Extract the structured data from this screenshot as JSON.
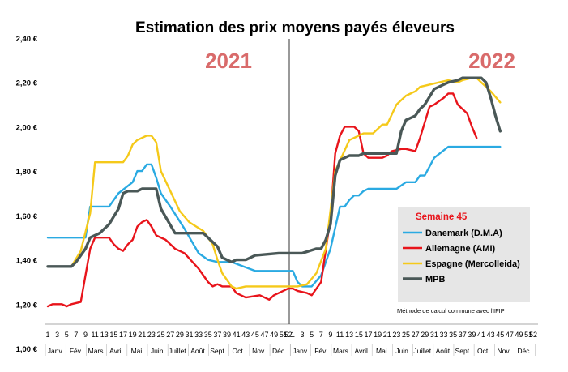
{
  "chart_data": {
    "type": "line",
    "title": "Estimation des prix moyens payés éleveurs",
    "year_labels": [
      "2021",
      "2022"
    ],
    "ylim": [
      1.0,
      2.4
    ],
    "yticks": [
      "1,00 €",
      "1,20 €",
      "1,40 €",
      "1,60 €",
      "1,80 €",
      "2,00 €",
      "2,20 €",
      "2,40 €"
    ],
    "week_ticks_2021": [
      "1",
      "3",
      "5",
      "7",
      "9",
      "11",
      "13",
      "15",
      "17",
      "19",
      "21",
      "23",
      "25",
      "27",
      "29",
      "31",
      "33",
      "35",
      "37",
      "39",
      "41",
      "43",
      "45",
      "47",
      "49",
      "51",
      "52"
    ],
    "week_ticks_2022": [
      "1",
      "3",
      "5",
      "7",
      "9",
      "11",
      "13",
      "15",
      "17",
      "19",
      "21",
      "23",
      "25",
      "27",
      "29",
      "31",
      "33",
      "35",
      "37",
      "39",
      "41",
      "43",
      "45",
      "47",
      "49",
      "51",
      "52"
    ],
    "months_2021": [
      "Janv",
      "Fév",
      "Mars",
      "Avril",
      "Mai",
      "Juin",
      "Juillet",
      "Août",
      "Sept.",
      "Oct.",
      "Nov.",
      "Déc."
    ],
    "months_2022": [
      "Janv",
      "Fév",
      "Mars",
      "Avril",
      "Mai",
      "Juin",
      "Juillet",
      "Août",
      "Sept.",
      "Oct.",
      "Nov.",
      "Déc."
    ],
    "legend_title": "Semaine 45",
    "legend_position": "right",
    "note": "Méthode de calcul commune avec l'IFIP",
    "grid": false,
    "series": [
      {
        "name": "Danemark (D.M.A)",
        "color": "#2aaae2",
        "x": [
          1,
          9,
          10,
          14,
          16,
          19,
          20,
          21,
          22,
          23,
          24,
          25,
          27,
          30,
          33,
          35,
          37,
          40,
          45,
          50,
          53,
          54,
          55,
          57,
          59,
          61,
          63,
          64,
          65,
          66,
          67,
          68,
          69,
          71,
          75,
          77,
          79,
          80,
          81,
          83,
          86,
          88,
          90,
          91,
          92,
          97
        ],
        "y": [
          1.5,
          1.5,
          1.64,
          1.64,
          1.7,
          1.75,
          1.8,
          1.8,
          1.83,
          1.83,
          1.77,
          1.7,
          1.64,
          1.54,
          1.43,
          1.4,
          1.39,
          1.39,
          1.35,
          1.35,
          1.35,
          1.3,
          1.28,
          1.28,
          1.33,
          1.45,
          1.64,
          1.64,
          1.67,
          1.69,
          1.69,
          1.71,
          1.72,
          1.72,
          1.72,
          1.75,
          1.75,
          1.78,
          1.78,
          1.86,
          1.91,
          1.91,
          1.91,
          1.91,
          1.91,
          1.91
        ]
      },
      {
        "name": "Allemagne (AMI)",
        "color": "#e8141b",
        "x": [
          1,
          2,
          4,
          5,
          6,
          8,
          10,
          11,
          14,
          15,
          16,
          17,
          18,
          19,
          20,
          21,
          22,
          23,
          24,
          26,
          28,
          30,
          33,
          35,
          36,
          37,
          38,
          40,
          41,
          43,
          46,
          48,
          49,
          52,
          53,
          54,
          56,
          57,
          59,
          61,
          62,
          63,
          64,
          65,
          66,
          67,
          68,
          69,
          72,
          73,
          74,
          76,
          77,
          79,
          80,
          82,
          83,
          85,
          86,
          87,
          88,
          90,
          91,
          92
        ],
        "y": [
          1.19,
          1.2,
          1.2,
          1.19,
          1.2,
          1.21,
          1.45,
          1.5,
          1.5,
          1.47,
          1.45,
          1.44,
          1.47,
          1.49,
          1.55,
          1.57,
          1.58,
          1.55,
          1.51,
          1.49,
          1.45,
          1.43,
          1.36,
          1.3,
          1.28,
          1.29,
          1.28,
          1.28,
          1.25,
          1.23,
          1.24,
          1.22,
          1.24,
          1.27,
          1.27,
          1.26,
          1.25,
          1.24,
          1.3,
          1.59,
          1.88,
          1.96,
          2.0,
          2.0,
          2.0,
          1.98,
          1.88,
          1.86,
          1.86,
          1.87,
          1.89,
          1.9,
          1.9,
          1.89,
          1.95,
          2.09,
          2.1,
          2.13,
          2.15,
          2.15,
          2.1,
          2.06,
          2.0,
          1.95
        ]
      },
      {
        "name": "Espagne (Mercolleida)",
        "color": "#f5c91a",
        "x": [
          1,
          3,
          6,
          8,
          10,
          11,
          15,
          17,
          18,
          19,
          20,
          22,
          23,
          24,
          25,
          27,
          29,
          31,
          34,
          36,
          37,
          38,
          40,
          41,
          43,
          49,
          52,
          54,
          56,
          58,
          60,
          62,
          65,
          66,
          68,
          70,
          72,
          73,
          75,
          77,
          79,
          80,
          82,
          84,
          86,
          88,
          89,
          91,
          92,
          95,
          97
        ],
        "y": [
          1.37,
          1.37,
          1.37,
          1.44,
          1.61,
          1.84,
          1.84,
          1.84,
          1.87,
          1.92,
          1.94,
          1.96,
          1.96,
          1.93,
          1.8,
          1.71,
          1.62,
          1.57,
          1.53,
          1.47,
          1.4,
          1.34,
          1.28,
          1.27,
          1.28,
          1.28,
          1.28,
          1.28,
          1.29,
          1.34,
          1.45,
          1.8,
          1.94,
          1.95,
          1.97,
          1.97,
          2.01,
          2.01,
          2.1,
          2.14,
          2.16,
          2.18,
          2.19,
          2.2,
          2.21,
          2.2,
          2.21,
          2.22,
          2.22,
          2.16,
          2.11
        ]
      },
      {
        "name": "MPB",
        "color": "#4a5857",
        "x": [
          1,
          6,
          7,
          9,
          10,
          12,
          14,
          16,
          17,
          18,
          19,
          20,
          21,
          22,
          23,
          24,
          25,
          28,
          31,
          34,
          37,
          38,
          40,
          41,
          43,
          45,
          50,
          55,
          58,
          59,
          60,
          61,
          62,
          63,
          64,
          65,
          66,
          67,
          68,
          69,
          70,
          72,
          73,
          74,
          75,
          76,
          77,
          78,
          79,
          80,
          81,
          83,
          85,
          86,
          88,
          89,
          90,
          91,
          93,
          94,
          95,
          96,
          97
        ],
        "y": [
          1.37,
          1.37,
          1.39,
          1.45,
          1.5,
          1.52,
          1.56,
          1.63,
          1.7,
          1.71,
          1.71,
          1.71,
          1.72,
          1.72,
          1.72,
          1.72,
          1.63,
          1.52,
          1.52,
          1.52,
          1.46,
          1.41,
          1.39,
          1.4,
          1.4,
          1.42,
          1.43,
          1.43,
          1.45,
          1.45,
          1.49,
          1.56,
          1.78,
          1.85,
          1.86,
          1.87,
          1.87,
          1.87,
          1.88,
          1.88,
          1.88,
          1.88,
          1.88,
          1.88,
          1.88,
          1.98,
          2.03,
          2.04,
          2.05,
          2.08,
          2.1,
          2.17,
          2.19,
          2.2,
          2.21,
          2.22,
          2.22,
          2.22,
          2.22,
          2.2,
          2.13,
          2.05,
          1.98
        ]
      }
    ]
  }
}
